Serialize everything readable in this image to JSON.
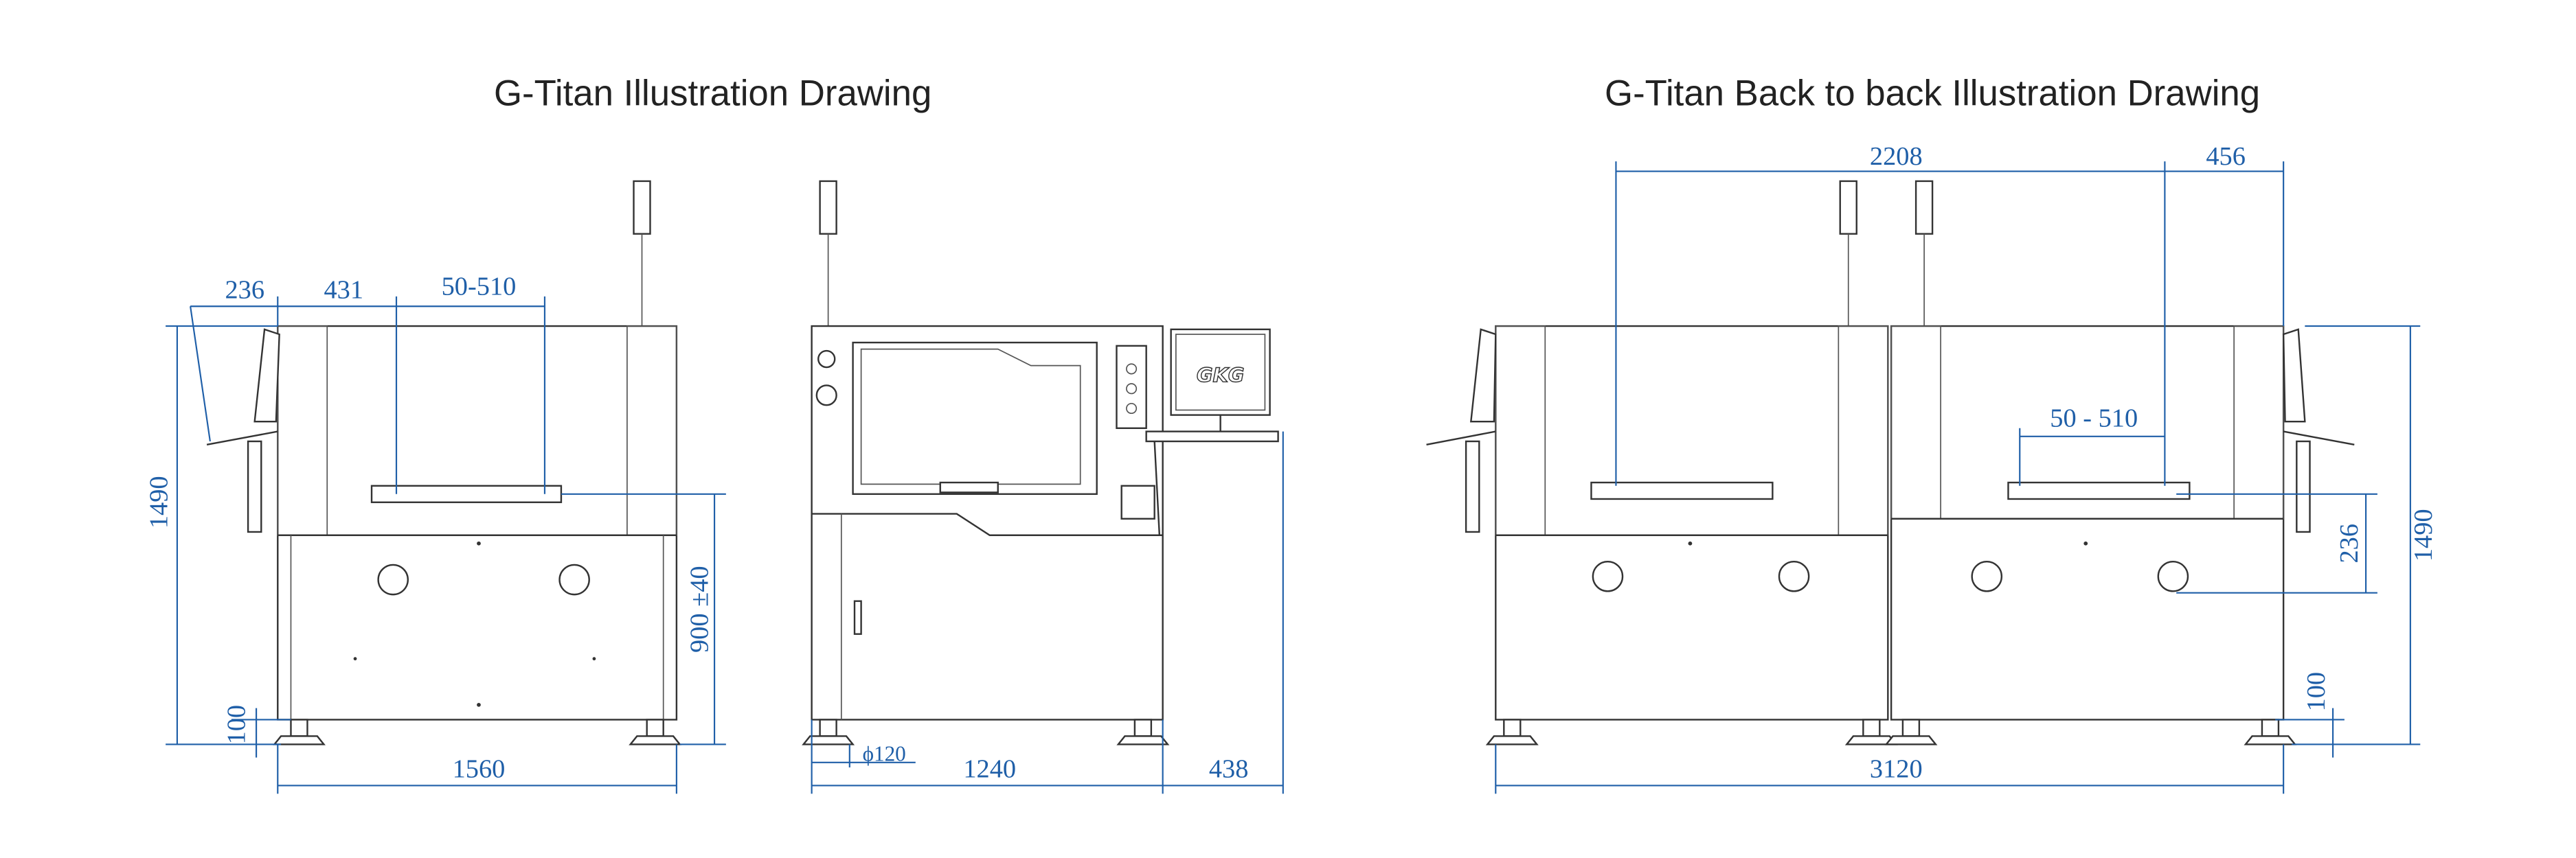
{
  "left": {
    "title": "G-Titan Illustration Drawing",
    "dimensions": {
      "d236": "236",
      "d431": "431",
      "d50_510": "50-510",
      "d1490": "1490",
      "d900": "900 ±40",
      "d100": "100",
      "d1560": "1560",
      "d120": "ϕ120",
      "d1240": "1240",
      "d438": "438"
    },
    "screen_logo": "GKG"
  },
  "right": {
    "title": "G-Titan Back to back Illustration Drawing",
    "dimensions": {
      "d2208": "2208",
      "d456": "456",
      "d50_510": "50 - 510",
      "d236": "236",
      "d1490": "1490",
      "d100": "100",
      "d3120": "3120"
    }
  }
}
